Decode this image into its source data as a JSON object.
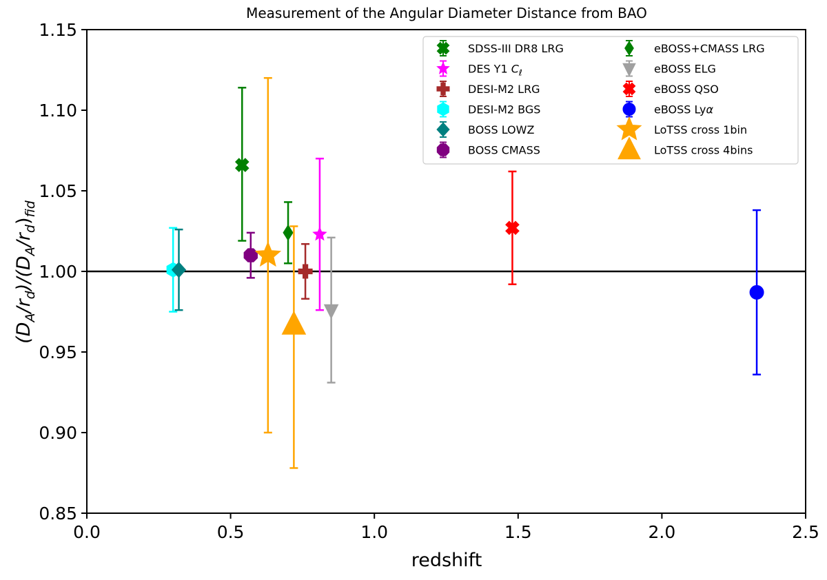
{
  "chart_data": {
    "type": "scatter",
    "title": "Measurement of the Angular Diameter Distance from BAO",
    "xlabel": "redshift",
    "ylabel_parts": [
      "(D",
      "A",
      "/r",
      "d",
      ")/(D",
      "A",
      "/r",
      "d",
      ")",
      "fid"
    ],
    "xlim": [
      0.0,
      2.5
    ],
    "ylim": [
      0.85,
      1.15
    ],
    "xticks": [
      0.0,
      0.5,
      1.0,
      1.5,
      2.0,
      2.5
    ],
    "xtick_labels": [
      "0.0",
      "0.5",
      "1.0",
      "1.5",
      "2.0",
      "2.5"
    ],
    "yticks": [
      0.85,
      0.9,
      0.95,
      1.0,
      1.05,
      1.1,
      1.15
    ],
    "ytick_labels": [
      "0.85",
      "0.90",
      "0.95",
      "1.00",
      "1.05",
      "1.10",
      "1.15"
    ],
    "reference_line": 1.0,
    "legend_position": "upper-right",
    "series": [
      {
        "name": "SDSS-III DR8 LRG",
        "legend_parts": [
          "SDSS-III DR8 LRG"
        ],
        "color": "#008000",
        "marker": "x-filled",
        "x": 0.54,
        "y": 1.066,
        "yerr_low": 0.047,
        "yerr_high": 0.048
      },
      {
        "name": "DES Y1 Cℓ",
        "legend_parts": [
          "DES Y1 ",
          "C",
          "ℓ"
        ],
        "color": "#ff00ff",
        "marker": "star-small",
        "x": 0.81,
        "y": 1.023,
        "yerr_low": 0.047,
        "yerr_high": 0.047
      },
      {
        "name": "DESI-M2 LRG",
        "legend_parts": [
          "DESI-M2 LRG"
        ],
        "color": "#a52a2a",
        "marker": "plus-filled",
        "x": 0.76,
        "y": 1.0,
        "yerr_low": 0.017,
        "yerr_high": 0.017
      },
      {
        "name": "DESI-M2 BGS",
        "legend_parts": [
          "DESI-M2 BGS"
        ],
        "color": "#00ffff",
        "marker": "hexagon",
        "x": 0.3,
        "y": 1.001,
        "yerr_low": 0.026,
        "yerr_high": 0.026
      },
      {
        "name": "BOSS LOWZ",
        "legend_parts": [
          "BOSS LOWZ"
        ],
        "color": "#008080",
        "marker": "diamond",
        "x": 0.32,
        "y": 1.001,
        "yerr_low": 0.025,
        "yerr_high": 0.025
      },
      {
        "name": "BOSS CMASS",
        "legend_parts": [
          "BOSS CMASS"
        ],
        "color": "#800080",
        "marker": "octagon",
        "x": 0.57,
        "y": 1.01,
        "yerr_low": 0.014,
        "yerr_high": 0.014
      },
      {
        "name": "eBOSS+CMASS LRG",
        "legend_parts": [
          "eBOSS+CMASS LRG"
        ],
        "color": "#008000",
        "marker": "thin-diamond",
        "x": 0.7,
        "y": 1.024,
        "yerr_low": 0.019,
        "yerr_high": 0.019
      },
      {
        "name": "eBOSS ELG",
        "legend_parts": [
          "eBOSS ELG"
        ],
        "color": "#a0a0a0",
        "marker": "triangle-down",
        "x": 0.85,
        "y": 0.976,
        "yerr_low": 0.045,
        "yerr_high": 0.045
      },
      {
        "name": "eBOSS QSO",
        "legend_parts": [
          "eBOSS QSO"
        ],
        "color": "#ff0000",
        "marker": "x-filled",
        "x": 1.48,
        "y": 1.027,
        "yerr_low": 0.035,
        "yerr_high": 0.035
      },
      {
        "name": "eBOSS Lyα",
        "legend_parts": [
          "eBOSS Ly",
          "α"
        ],
        "color": "#0000ff",
        "marker": "circle",
        "x": 2.33,
        "y": 0.987,
        "yerr_low": 0.051,
        "yerr_high": 0.051
      },
      {
        "name": "LoTSS cross 1bin",
        "legend_parts": [
          "LoTSS cross 1bin"
        ],
        "color": "#ffa500",
        "marker": "star-big",
        "x": 0.63,
        "y": 1.01,
        "yerr_low": 0.11,
        "yerr_high": 0.11
      },
      {
        "name": "LoTSS cross 4bins",
        "legend_parts": [
          "LoTSS cross 4bins"
        ],
        "color": "#ffa500",
        "marker": "triangle-up-big",
        "x": 0.72,
        "y": 0.967,
        "yerr_low": 0.089,
        "yerr_high": 0.061
      }
    ]
  }
}
